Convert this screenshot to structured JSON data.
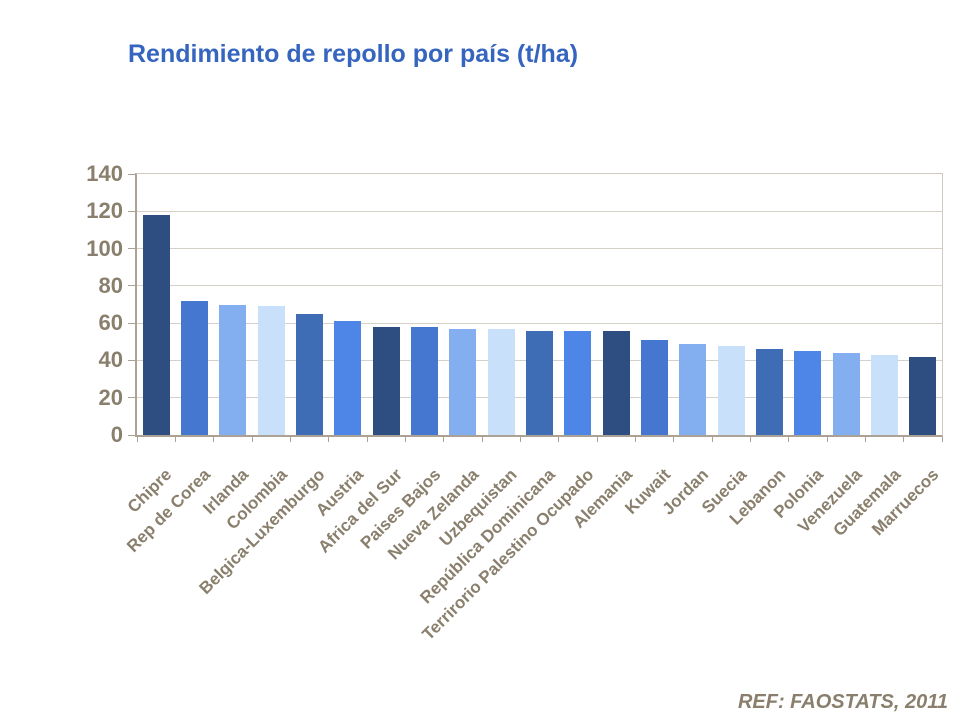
{
  "page": {
    "background": "#FFFFFF"
  },
  "header": {
    "title": "Rendimiento de repollo por país (t/ha)",
    "title_color": "#3565BE"
  },
  "footer": {
    "ref_label": "REF: FAOSTATS, 2011",
    "color": "#897F6C"
  },
  "chart_data": {
    "type": "bar",
    "title": "Rendimiento de repollo por país (t/ha)",
    "categories": [
      "Chipre",
      "Rep de Corea",
      "Irlanda",
      "Colombia",
      "Belgica-Luxemburgo",
      "Austria",
      "Africa del Sur",
      "Paises Bajos",
      "Nueva Zelanda",
      "Uzbequistan",
      "República Dominicana",
      "Terrirorio Palestino Ocupado",
      "Alemania",
      "Kuwait",
      "Jordan",
      "Suecia",
      "Lebanon",
      "Polonia",
      "Venezuela",
      "Guatemala",
      "Marruecos"
    ],
    "values": [
      118,
      72,
      70,
      69,
      65,
      61,
      58,
      58,
      57,
      57,
      56,
      56,
      56,
      51,
      49,
      48,
      46,
      45,
      44,
      43,
      42
    ],
    "bar_colors": [
      "#2E4D80",
      "#4577D0",
      "#83AFF1",
      "#C9E0FA",
      "#3E6CB5",
      "#4E86E8",
      "#2E4D80",
      "#4577D0",
      "#83AFF1",
      "#C9E0FA",
      "#3E6CB5",
      "#4E86E8",
      "#2E4D80",
      "#4577D0",
      "#83AFF1",
      "#C9E0FA",
      "#3E6CB5",
      "#4E86E8",
      "#83AFF1",
      "#C9E0FA",
      "#2E4D80"
    ],
    "xlabel": "",
    "ylabel": "",
    "ylim": [
      0,
      140
    ],
    "yticks": [
      0,
      20,
      40,
      60,
      80,
      100,
      120,
      140
    ],
    "grid": true,
    "legend": false,
    "axis_text_color": "#897F6C",
    "gridline_color": "#D5D0C8",
    "axis_line_color": "#ABA295",
    "frame_color": "#CFC9BF"
  }
}
